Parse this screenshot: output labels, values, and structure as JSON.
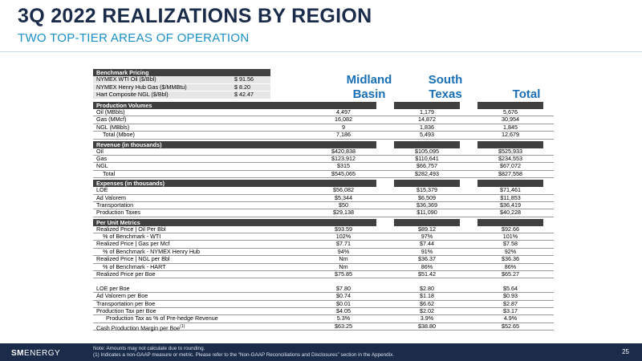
{
  "title": "3Q 2022 REALIZATIONS BY REGION",
  "subtitle": "TWO TOP-TIER AREAS OF OPERATION",
  "benchmark": {
    "header": "Benchmark Pricing",
    "rows": [
      {
        "label": "NYMEX WTI Oil ($/Bbl)",
        "value": "$  91.56"
      },
      {
        "label": "NYMEX Henry Hub Gas ($/MMBtu)",
        "value": "$    8.20"
      },
      {
        "label": "Hart Composite NGL ($/Bbl)",
        "value": "$  42.47"
      }
    ]
  },
  "columns": {
    "midland": "Midland\nBasin",
    "midland_l1": "Midland",
    "midland_l2": "Basin",
    "south_l1": "South",
    "south_l2": "Texas",
    "total": "Total"
  },
  "sections": [
    {
      "header": "Production Volumes",
      "rows": [
        {
          "label": "Oil (MBbls)",
          "v": [
            "4,497",
            "1,179",
            "5,676"
          ]
        },
        {
          "label": "Gas (MMcf)",
          "v": [
            "16,082",
            "14,872",
            "30,954"
          ]
        },
        {
          "label": "NGL (MBbls)",
          "v": [
            "9",
            "1,836",
            "1,845"
          ]
        },
        {
          "label": "Total (Mboe)",
          "v": [
            "7,186",
            "5,493",
            "12,679"
          ],
          "indent": true
        }
      ]
    },
    {
      "header": "Revenue (in thousands)",
      "rows": [
        {
          "label": "Oil",
          "v": [
            "$420,838",
            "$105,095",
            "$525,933"
          ]
        },
        {
          "label": "Gas",
          "v": [
            "$123,912",
            "$110,641",
            "$234,553"
          ]
        },
        {
          "label": "NGL",
          "v": [
            "$315",
            "$66,757",
            "$67,072"
          ]
        },
        {
          "label": "Total",
          "v": [
            "$545,065",
            "$282,493",
            "$827,558"
          ],
          "indent": true
        }
      ]
    },
    {
      "header": "Expenses (in thousands)",
      "rows": [
        {
          "label": "LOE",
          "v": [
            "$56,082",
            "$15,379",
            "$71,461"
          ]
        },
        {
          "label": "Ad Valorem",
          "v": [
            "$5,344",
            "$6,509",
            "$11,853"
          ]
        },
        {
          "label": "Transportation",
          "v": [
            "$50",
            "$36,369",
            "$36,419"
          ]
        },
        {
          "label": "Production Taxes",
          "v": [
            "$29,138",
            "$11,090",
            "$40,228"
          ]
        }
      ]
    },
    {
      "header": "Per Unit Metrics",
      "rows": [
        {
          "label": "Realized Price | Oil Per Bbl",
          "v": [
            "$93.59",
            "$89.12",
            "$92.66"
          ]
        },
        {
          "label": "% of Benchmark - WTI",
          "v": [
            "102%",
            "97%",
            "101%"
          ],
          "indent": true
        },
        {
          "label": "Realized Price | Gas per Mcf",
          "v": [
            "$7.71",
            "$7.44",
            "$7.58"
          ]
        },
        {
          "label": "% of Benchmark - NYMEX Henry Hub",
          "v": [
            "94%",
            "91%",
            "92%"
          ],
          "indent": true
        },
        {
          "label": "Realized Price | NGL per Bbl",
          "v": [
            "Nm",
            "$36.37",
            "$36.36"
          ]
        },
        {
          "label": "% of Benchmark - HART",
          "v": [
            "Nm",
            "86%",
            "86%"
          ],
          "indent": true
        },
        {
          "label": "Realized Price per Boe",
          "v": [
            "$75.85",
            "$51.42",
            "$65.27"
          ]
        },
        {
          "label": "",
          "v": [
            "",
            "",
            ""
          ],
          "blank": true
        },
        {
          "label": "LOE per Boe",
          "v": [
            "$7.80",
            "$2.80",
            "$5.64"
          ]
        },
        {
          "label": "Ad Valorem per Boe",
          "v": [
            "$0.74",
            "$1.18",
            "$0.93"
          ]
        },
        {
          "label": "Transportation per Boe",
          "v": [
            "$0.01",
            "$6.62",
            "$2.87"
          ]
        },
        {
          "label": "Production Tax per Boe",
          "v": [
            "$4.05",
            "$2.02",
            "$3.17"
          ]
        },
        {
          "label": "Production Tax as % of Pre-hedge Revenue",
          "v": [
            "5.3%",
            "3.9%",
            "4.9%"
          ],
          "indent2": true
        },
        {
          "label": "Cash Production Margin per Boe",
          "sup": "(1)",
          "v": [
            "$63.25",
            "$38.80",
            "$52.65"
          ]
        }
      ]
    }
  ],
  "footer": {
    "logo_sm": "SM",
    "logo_energy": "ENERGY",
    "note1": "Note: Amounts may not calculate due to rounding.",
    "note2": "(1)    Indicates a non-GAAP measure or metric. Please refer to the “Non-GAAP Reconciliations and Disclosures” section in the Appendix.",
    "page": "25"
  }
}
